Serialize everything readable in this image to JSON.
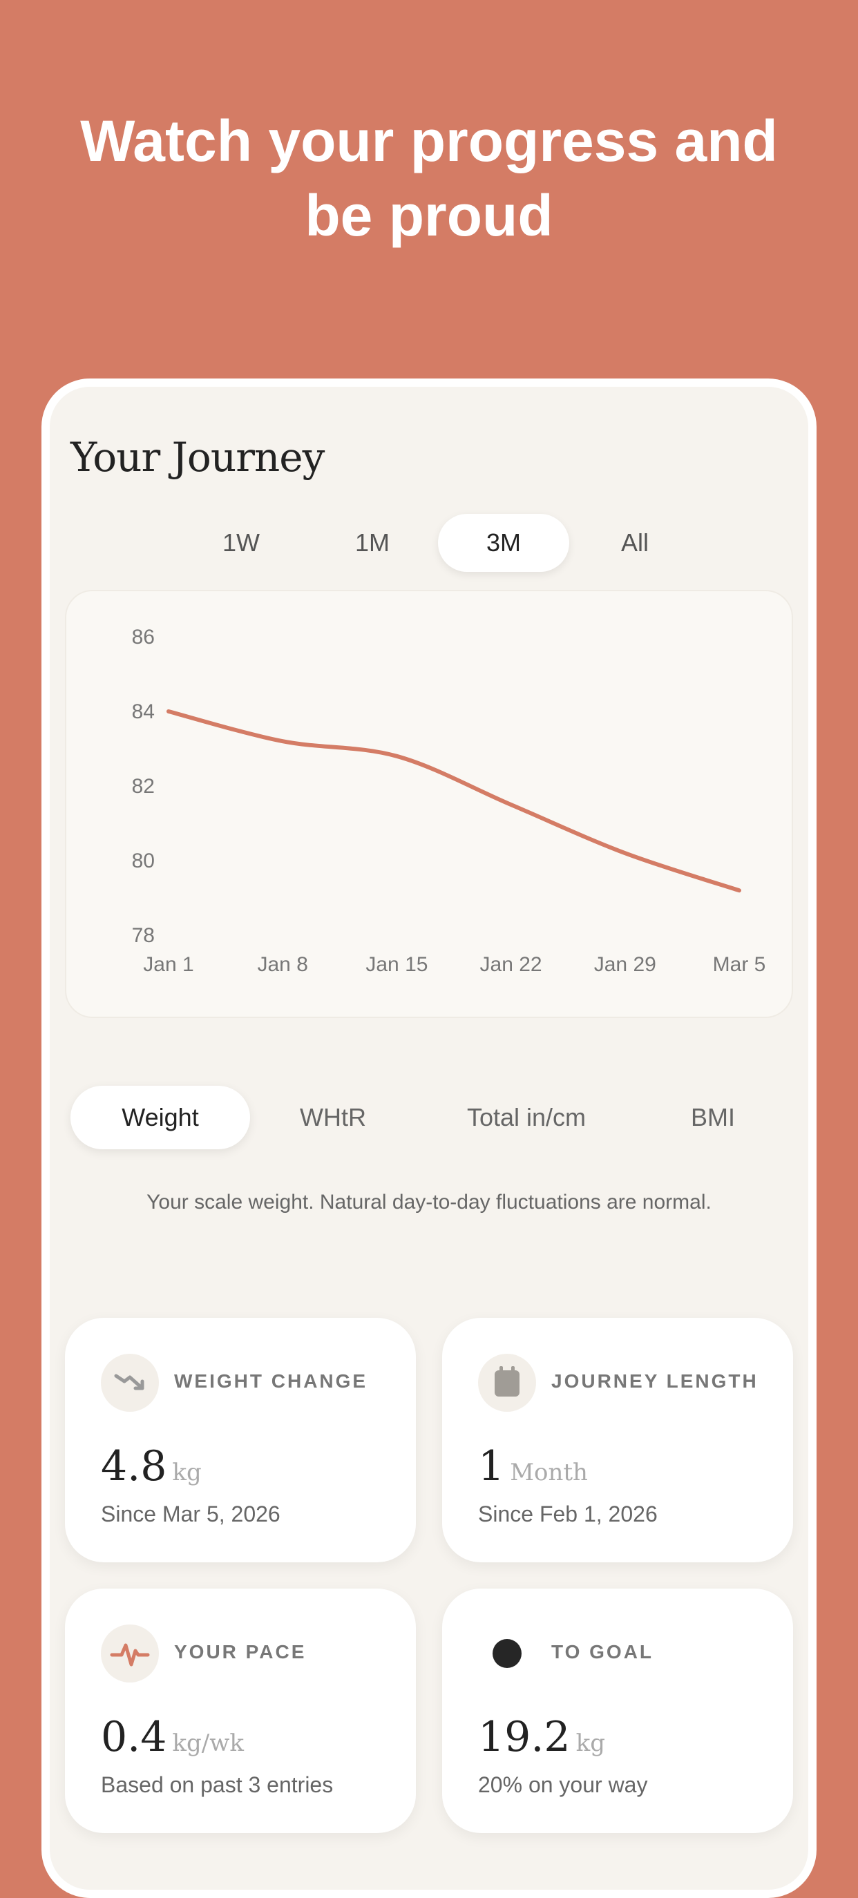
{
  "headline": {
    "line1": "Watch your progress and",
    "line2": "be proud"
  },
  "screen": {
    "title": "Your Journey",
    "range_options": [
      "1W",
      "1M",
      "3M",
      "All"
    ],
    "range_selected": "3M",
    "metric_tabs": [
      "Weight",
      "WHtR",
      "Total in/cm",
      "BMI"
    ],
    "metric_selected": "Weight",
    "description": "Your scale weight. Natural day-to-day fluctuations are normal."
  },
  "chart_data": {
    "type": "line",
    "x": [
      "Jan 1",
      "Jan 8",
      "Jan 15",
      "Jan 22",
      "Jan 29",
      "Mar 5"
    ],
    "yticks": [
      86,
      84,
      82,
      80,
      78
    ],
    "ylim": [
      78,
      86
    ],
    "series": [
      {
        "values": [
          84.0,
          83.2,
          82.8,
          81.5,
          80.2,
          79.2
        ]
      }
    ],
    "color": "#D47C65"
  },
  "stats": {
    "weight_change": {
      "label": "WEIGHT CHANGE",
      "value": "4.8",
      "unit": "kg",
      "sub": "Since Mar 5, 2026",
      "icon": "trend-down-icon"
    },
    "journey_length": {
      "label": "JOURNEY LENGTH",
      "value": "1",
      "unit": "Month",
      "sub": "Since Feb 1, 2026",
      "icon": "calendar-icon"
    },
    "your_pace": {
      "label": "YOUR PACE",
      "value": "0.4",
      "unit": "kg/wk",
      "sub": "Based on past 3 entries",
      "icon": "pulse-icon"
    },
    "to_goal": {
      "label": "TO GOAL",
      "value": "19.2",
      "unit": "kg",
      "sub": "20% on your way",
      "icon": "goal-dot-icon"
    }
  }
}
